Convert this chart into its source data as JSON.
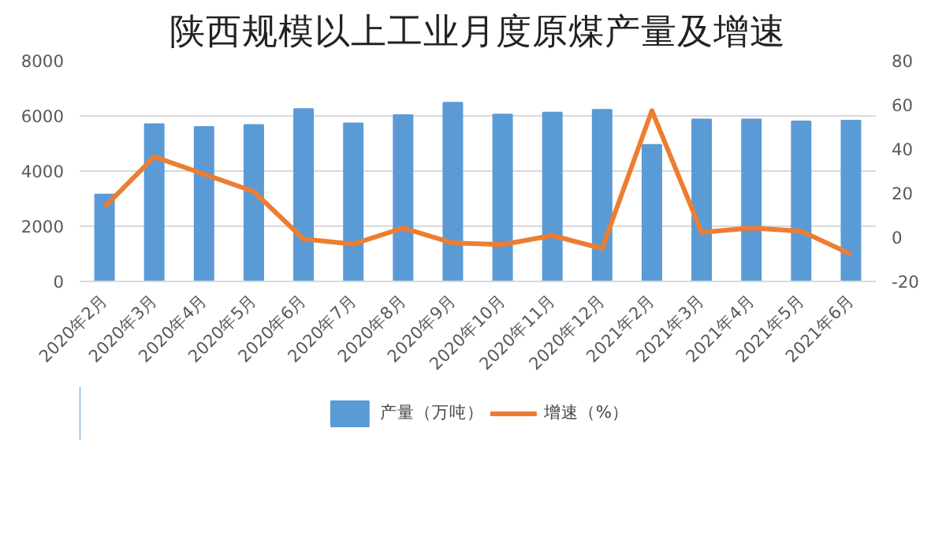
{
  "chart_data": {
    "type": "bar",
    "title": "陕西规模以上工业月度原煤产量及增速",
    "categories": [
      "2020年2月",
      "2020年3月",
      "2020年4月",
      "2020年5月",
      "2020年6月",
      "2020年7月",
      "2020年8月",
      "2020年9月",
      "2020年10月",
      "2020年11月",
      "2020年12月",
      "2021年2月",
      "2021年3月",
      "2021年4月",
      "2021年5月",
      "2021年6月"
    ],
    "series": [
      {
        "name": "产量（万吨）",
        "color": "#5b9bd5",
        "values": [
          3150,
          5700,
          5600,
          5670,
          6250,
          5730,
          6030,
          6480,
          6050,
          6120,
          6220,
          4950,
          5870,
          5870,
          5800,
          5830
        ]
      },
      {
        "name": "增速（%）",
        "type": "line",
        "axis": "y2",
        "color": "#ed7d31",
        "values": [
          13.7,
          36.5,
          28.6,
          20.7,
          -0.8,
          -3.1,
          4.2,
          -2.6,
          -3.3,
          0.8,
          -5.1,
          57.4,
          2.2,
          4.2,
          2.8,
          -7.7
        ]
      }
    ],
    "ylim": [
      0,
      8000
    ],
    "yticks": [
      0,
      2000,
      4000,
      6000,
      8000
    ],
    "y2lim": [
      -20,
      80
    ],
    "y2ticks": [
      -20,
      0,
      20,
      40,
      60,
      80
    ],
    "grid": "y",
    "legend": "bottom"
  }
}
